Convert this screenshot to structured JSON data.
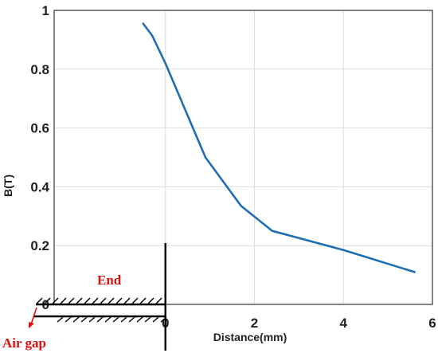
{
  "chart_data": {
    "type": "line",
    "xlabel": "Distance(mm)",
    "ylabel": "B(T)",
    "xlim": [
      -2.5,
      6
    ],
    "ylim": [
      0,
      1
    ],
    "grid": true,
    "x_ticks": [
      "0",
      "2",
      "4",
      "6"
    ],
    "y_ticks": [
      "0",
      "0.2",
      "0.4",
      "0.6",
      "0.8",
      "1"
    ],
    "series": [
      {
        "color": "#1f6eb5",
        "x": [
          -0.5,
          -0.3,
          0.0,
          0.9,
          1.7,
          2.4,
          4.0,
          5.6
        ],
        "y": [
          0.955,
          0.915,
          0.82,
          0.5,
          0.335,
          0.25,
          0.185,
          0.11
        ]
      }
    ],
    "annotations": {
      "end_label": "End",
      "air_gap_label": "Air gap",
      "color": "#dd1111"
    }
  }
}
